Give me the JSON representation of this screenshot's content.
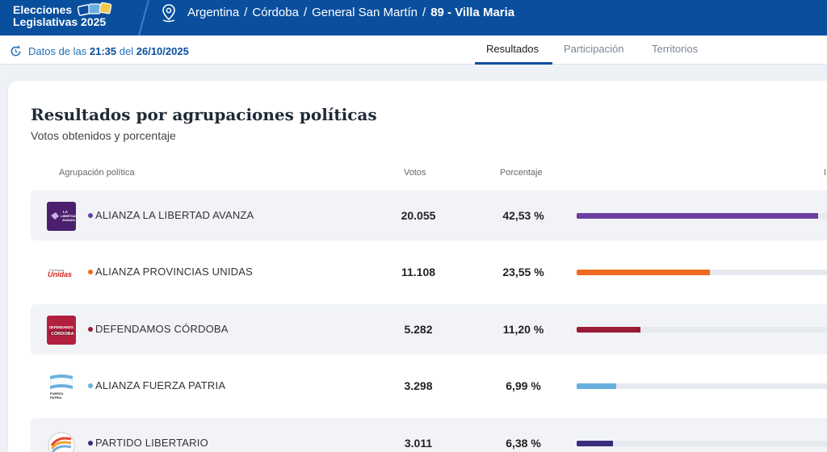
{
  "header": {
    "brand_line1": "Elecciones",
    "brand_line2": "Legislativas 2025",
    "breadcrumb": [
      "Argentina",
      "Córdoba",
      "General San Martín",
      "89 - Villa Maria"
    ],
    "separator": "/"
  },
  "subbar": {
    "updated_prefix": "Datos de las",
    "updated_time": "21:35",
    "updated_mid": "del",
    "updated_date": "26/10/2025",
    "tabs": [
      {
        "label": "Resultados",
        "active": true
      },
      {
        "label": "Participación",
        "active": false
      },
      {
        "label": "Territorios",
        "active": false
      }
    ]
  },
  "results": {
    "title": "Resultados por agrupaciones políticas",
    "subtitle": "Votos obtenidos y porcentaje",
    "columns": {
      "party": "Agrupación política",
      "votes": "Votos",
      "percent": "Porcentaje",
      "truncated": "I"
    },
    "rows": [
      {
        "name": "ALIANZA LA LIBERTAD AVANZA",
        "votes": "20.055",
        "percent_label": "42,53 %",
        "percent": 42.53,
        "color": "#6b3fa0",
        "logo_icon": "la-libertad-avanza-logo",
        "logo_text": "LA LIBERTAD AVANZA"
      },
      {
        "name": "ALIANZA PROVINCIAS UNIDAS",
        "votes": "11.108",
        "percent_label": "23,55 %",
        "percent": 23.55,
        "color": "#ee6a1f",
        "logo_icon": "provincias-unidas-logo",
        "logo_text": "Unidas"
      },
      {
        "name": "DEFENDAMOS CÓRDOBA",
        "votes": "5.282",
        "percent_label": "11,20 %",
        "percent": 11.2,
        "color": "#9b1a37",
        "logo_icon": "defendamos-cordoba-logo",
        "logo_text": "DEFENDAMOS CÓRDOBA"
      },
      {
        "name": "ALIANZA FUERZA PATRIA",
        "votes": "3.298",
        "percent_label": "6,99 %",
        "percent": 6.99,
        "color": "#6ab0de",
        "logo_icon": "fuerza-patria-logo",
        "logo_text": "FUERZA PATRIA"
      },
      {
        "name": "PARTIDO LIBERTARIO",
        "votes": "3.011",
        "percent_label": "6,38 %",
        "percent": 6.38,
        "color": "#3a2d7c",
        "logo_icon": "partido-libertario-logo",
        "logo_text": ""
      }
    ]
  }
}
